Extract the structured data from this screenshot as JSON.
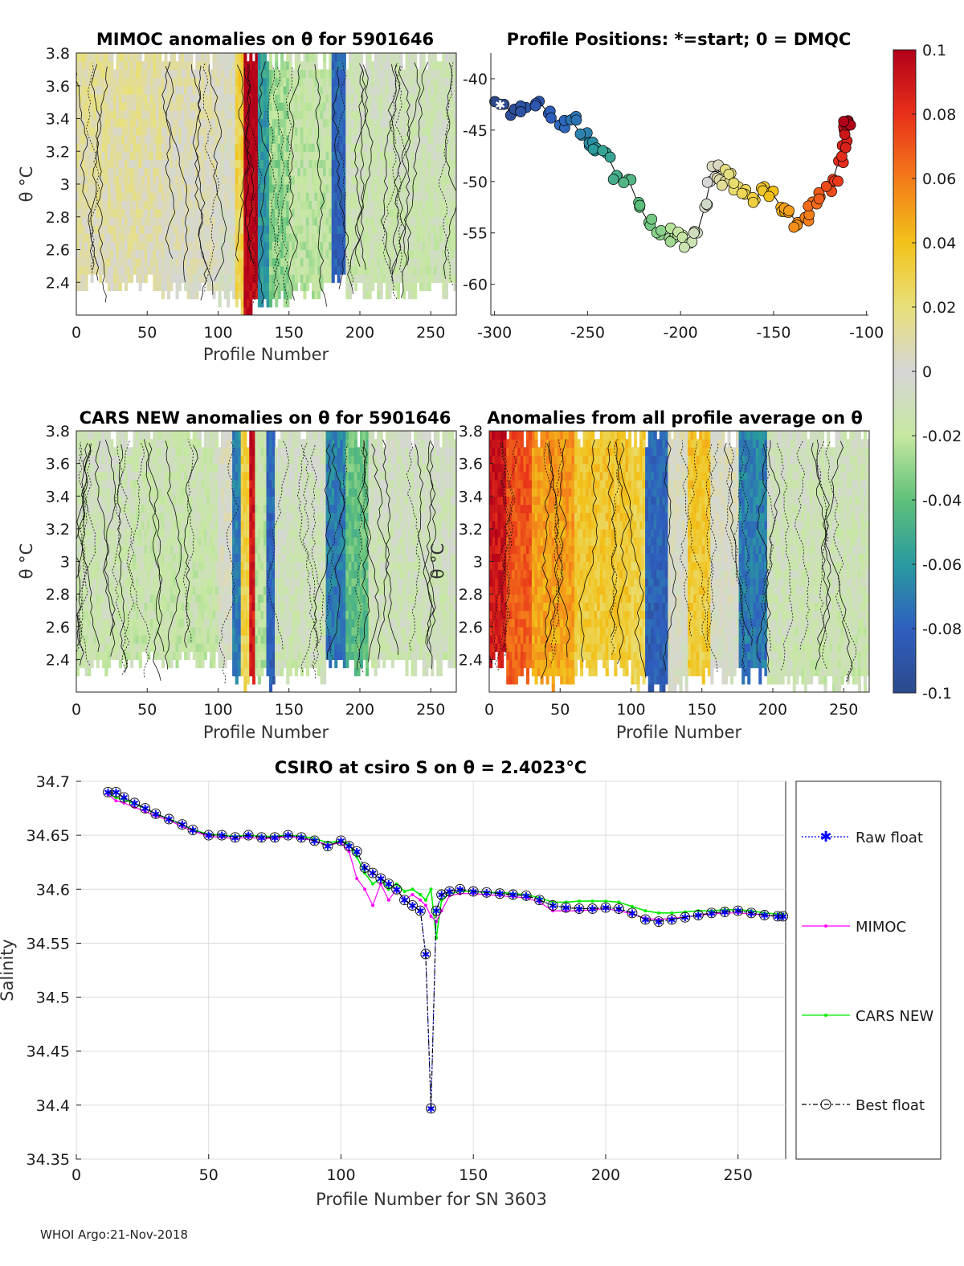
{
  "footer": "WHOI Argo:21-Nov-2018",
  "colors": {
    "raw": "#0000ff",
    "mimoc": "#ff00ff",
    "cars": "#00ee00",
    "best": "#000000"
  },
  "chart_data": [
    {
      "id": "mimoc",
      "type": "heatmap",
      "title": "MIMOC anomalies on θ  for 5901646",
      "xlabel": "Profile Number",
      "ylabel": "θ °C",
      "xlim": [
        0,
        268
      ],
      "ylim": [
        2.2,
        3.8
      ],
      "xticks": [
        "0",
        "50",
        "100",
        "150",
        "200",
        "250"
      ],
      "yticks": [
        "2.4",
        "2.6",
        "2.8",
        "3",
        "3.2",
        "3.4",
        "3.6",
        "3.8"
      ],
      "bands": [
        {
          "x0": 0,
          "x1": 60,
          "v": 0.01,
          "ylo": 2.35
        },
        {
          "x0": 60,
          "x1": 100,
          "v": 0.005,
          "ylo": 2.3
        },
        {
          "x0": 100,
          "x1": 112,
          "v": 0.0,
          "ylo": 2.25
        },
        {
          "x0": 112,
          "x1": 118,
          "v": 0.03,
          "ylo": 2.2
        },
        {
          "x0": 118,
          "x1": 128,
          "v": 0.1,
          "ylo": 2.2
        },
        {
          "x0": 128,
          "x1": 136,
          "v": -0.06,
          "ylo": 2.2
        },
        {
          "x0": 136,
          "x1": 150,
          "v": -0.03,
          "ylo": 2.25
        },
        {
          "x0": 150,
          "x1": 180,
          "v": -0.02,
          "ylo": 2.3
        },
        {
          "x0": 180,
          "x1": 190,
          "v": -0.08,
          "ylo": 2.35
        },
        {
          "x0": 190,
          "x1": 268,
          "v": -0.012,
          "ylo": 2.3
        }
      ]
    },
    {
      "id": "positions",
      "type": "scatter",
      "title": "Profile Positions: *=start; 0 = DMQC",
      "xlim": [
        -302,
        -99
      ],
      "ylim": [
        -63,
        -37.5
      ],
      "xticks": [
        "-300",
        "-250",
        "-200",
        "-150",
        "-100"
      ],
      "yticks": [
        "-40",
        "-45",
        "-50",
        "-55",
        "-60"
      ],
      "x": [
        -297,
        -290,
        -283,
        -276,
        -271,
        -265,
        -259,
        -253,
        -249,
        -246,
        -240,
        -234,
        -228,
        -222,
        -217,
        -211,
        -206,
        -203,
        -199,
        -195,
        -191,
        -187,
        -184,
        -181,
        -178,
        -176,
        -173,
        -169,
        -165,
        -160,
        -155,
        -151,
        -146,
        -142,
        -137,
        -133,
        -129,
        -125,
        -121,
        -118,
        -115,
        -113,
        -112,
        -111,
        -110
      ],
      "y": [
        -42.5,
        -43.2,
        -42.8,
        -42.2,
        -43.4,
        -44.5,
        -44.0,
        -45.5,
        -46.5,
        -47.0,
        -47.2,
        -49.5,
        -49.8,
        -52.5,
        -54.0,
        -55.2,
        -55.5,
        -55.0,
        -55.2,
        -56.0,
        -55.0,
        -52.5,
        -50.0,
        -48.5,
        -49.5,
        -50.0,
        -49.2,
        -50.5,
        -50.8,
        -51.8,
        -50.5,
        -51.0,
        -52.5,
        -53.0,
        -54.0,
        -53.5,
        -52.0,
        -51.5,
        -50.5,
        -49.8,
        -48.0,
        -46.5,
        -45.0,
        -44.5,
        -44.2
      ]
    },
    {
      "id": "cars",
      "type": "heatmap",
      "title": "CARS NEW anomalies on θ for 5901646",
      "xlabel": "Profile Number",
      "ylabel": "θ °C",
      "xlim": [
        0,
        268
      ],
      "ylim": [
        2.2,
        3.8
      ],
      "xticks": [
        "0",
        "50",
        "100",
        "150",
        "200",
        "250"
      ],
      "yticks": [
        "2.4",
        "2.6",
        "2.8",
        "3",
        "3.2",
        "3.4",
        "3.6",
        "3.8"
      ],
      "bands": [
        {
          "x0": 0,
          "x1": 40,
          "v": -0.012,
          "ylo": 2.3
        },
        {
          "x0": 40,
          "x1": 100,
          "v": -0.015,
          "ylo": 2.35
        },
        {
          "x0": 100,
          "x1": 110,
          "v": 0.0,
          "ylo": 2.3
        },
        {
          "x0": 110,
          "x1": 116,
          "v": -0.07,
          "ylo": 2.2
        },
        {
          "x0": 116,
          "x1": 122,
          "v": 0.03,
          "ylo": 2.2
        },
        {
          "x0": 122,
          "x1": 126,
          "v": 0.09,
          "ylo": 2.2
        },
        {
          "x0": 126,
          "x1": 134,
          "v": -0.02,
          "ylo": 2.25
        },
        {
          "x0": 134,
          "x1": 140,
          "v": -0.08,
          "ylo": 2.2
        },
        {
          "x0": 140,
          "x1": 175,
          "v": -0.01,
          "ylo": 2.25
        },
        {
          "x0": 175,
          "x1": 190,
          "v": -0.07,
          "ylo": 2.3
        },
        {
          "x0": 190,
          "x1": 205,
          "v": -0.04,
          "ylo": 2.3
        },
        {
          "x0": 205,
          "x1": 268,
          "v": -0.01,
          "ylo": 2.3
        }
      ]
    },
    {
      "id": "allavg",
      "type": "heatmap",
      "title": "Anomalies from all profile average on θ",
      "xlabel": "Profile Number",
      "ylabel": "θ °C",
      "xlim": [
        0,
        268
      ],
      "ylim": [
        2.2,
        3.8
      ],
      "xticks": [
        "0",
        "50",
        "100",
        "150",
        "200",
        "250"
      ],
      "yticks": [
        "2.4",
        "2.6",
        "2.8",
        "3",
        "3.2",
        "3.4",
        "3.6",
        "3.8"
      ],
      "bands": [
        {
          "x0": 0,
          "x1": 12,
          "v": 0.09,
          "ylo": 2.35
        },
        {
          "x0": 12,
          "x1": 30,
          "v": 0.07,
          "ylo": 2.25
        },
        {
          "x0": 30,
          "x1": 60,
          "v": 0.05,
          "ylo": 2.2
        },
        {
          "x0": 60,
          "x1": 100,
          "v": 0.035,
          "ylo": 2.3
        },
        {
          "x0": 100,
          "x1": 110,
          "v": 0.03,
          "ylo": 2.2
        },
        {
          "x0": 110,
          "x1": 125,
          "v": -0.08,
          "ylo": 2.2
        },
        {
          "x0": 125,
          "x1": 140,
          "v": 0.0,
          "ylo": 2.2
        },
        {
          "x0": 140,
          "x1": 155,
          "v": 0.035,
          "ylo": 2.25
        },
        {
          "x0": 155,
          "x1": 175,
          "v": 0.0,
          "ylo": 2.25
        },
        {
          "x0": 175,
          "x1": 195,
          "v": -0.07,
          "ylo": 2.25
        },
        {
          "x0": 195,
          "x1": 215,
          "v": -0.01,
          "ylo": 2.2
        },
        {
          "x0": 215,
          "x1": 268,
          "v": -0.012,
          "ylo": 2.2
        }
      ]
    },
    {
      "id": "colorbar",
      "type": "heatmap",
      "range": [
        -0.1,
        0.1
      ],
      "ticks": [
        "0.1",
        "0.08",
        "0.06",
        "0.04",
        "0.02",
        "0",
        "-0.02",
        "-0.04",
        "-0.06",
        "-0.08",
        "-0.1"
      ]
    },
    {
      "id": "salinity",
      "type": "line",
      "title": "CSIRO at csiro S on θ = 2.4023°C",
      "xlabel": "Profile Number for SN 3603",
      "ylabel": "Salinity",
      "xlim": [
        0,
        268
      ],
      "ylim": [
        34.35,
        34.7
      ],
      "xticks": [
        "0",
        "50",
        "100",
        "150",
        "200",
        "250"
      ],
      "yticks": [
        "34.7",
        "34.65",
        "34.6",
        "34.55",
        "34.5",
        "34.45",
        "34.4",
        "34.35"
      ],
      "legend": [
        "Raw float",
        "MIMOC",
        "CARS NEW",
        "Best float"
      ],
      "x": [
        12,
        15,
        18,
        22,
        26,
        30,
        35,
        40,
        44,
        50,
        55,
        60,
        65,
        70,
        75,
        80,
        85,
        90,
        95,
        100,
        103,
        106,
        109,
        112,
        115,
        118,
        121,
        124,
        127,
        130,
        132,
        134,
        136,
        138,
        141,
        145,
        150,
        155,
        160,
        165,
        170,
        175,
        180,
        185,
        190,
        195,
        200,
        205,
        210,
        215,
        220,
        225,
        230,
        235,
        240,
        245,
        250,
        255,
        260,
        265,
        267
      ],
      "series": [
        {
          "name": "Raw float",
          "values": [
            34.69,
            34.69,
            34.685,
            34.68,
            34.675,
            34.67,
            34.665,
            34.66,
            34.655,
            34.65,
            34.65,
            34.648,
            34.65,
            34.648,
            34.648,
            34.65,
            34.648,
            34.645,
            34.64,
            34.645,
            34.64,
            34.635,
            34.62,
            34.615,
            34.61,
            34.605,
            34.6,
            34.59,
            34.585,
            34.58,
            34.54,
            34.397,
            34.58,
            34.595,
            34.598,
            34.6,
            34.598,
            34.597,
            34.596,
            34.595,
            34.594,
            34.59,
            34.585,
            34.583,
            34.582,
            34.582,
            34.583,
            34.582,
            34.578,
            34.572,
            34.57,
            34.572,
            34.574,
            34.576,
            34.578,
            34.579,
            34.58,
            34.578,
            34.576,
            34.575,
            34.575
          ]
        },
        {
          "name": "MIMOC",
          "values": [
            34.688,
            34.682,
            34.68,
            34.676,
            34.672,
            34.668,
            34.664,
            34.658,
            34.654,
            34.649,
            34.648,
            34.647,
            34.648,
            34.647,
            34.647,
            34.649,
            34.647,
            34.645,
            34.641,
            34.643,
            34.635,
            34.61,
            34.6,
            34.585,
            34.605,
            34.59,
            34.6,
            34.59,
            34.595,
            34.59,
            34.585,
            34.575,
            34.57,
            34.58,
            34.594,
            34.596,
            34.596,
            34.595,
            34.594,
            34.593,
            34.592,
            34.588,
            34.58,
            34.58,
            34.58,
            34.581,
            34.582,
            34.58,
            34.577,
            34.573,
            34.572,
            34.573,
            34.574,
            34.576,
            34.577,
            34.578,
            34.578,
            34.577,
            34.576,
            34.575,
            34.575
          ]
        },
        {
          "name": "CARS NEW",
          "values": [
            34.689,
            34.685,
            34.683,
            34.679,
            34.675,
            34.67,
            34.665,
            34.66,
            34.655,
            34.651,
            34.65,
            34.649,
            34.65,
            34.649,
            34.649,
            34.65,
            34.649,
            34.647,
            34.643,
            34.645,
            34.642,
            34.63,
            34.615,
            34.605,
            34.61,
            34.6,
            34.605,
            34.598,
            34.6,
            34.595,
            34.59,
            34.6,
            34.555,
            34.59,
            34.596,
            34.598,
            34.598,
            34.597,
            34.597,
            34.596,
            34.595,
            34.592,
            34.588,
            34.588,
            34.589,
            34.589,
            34.589,
            34.588,
            34.584,
            34.58,
            34.578,
            34.578,
            34.579,
            34.58,
            34.58,
            34.581,
            34.581,
            34.58,
            34.578,
            34.577,
            34.577
          ]
        },
        {
          "name": "Best float",
          "values": [
            34.69,
            34.69,
            34.685,
            34.68,
            34.675,
            34.67,
            34.665,
            34.66,
            34.655,
            34.65,
            34.65,
            34.648,
            34.65,
            34.648,
            34.648,
            34.65,
            34.648,
            34.645,
            34.64,
            34.645,
            34.64,
            34.635,
            34.62,
            34.615,
            34.61,
            34.605,
            34.6,
            34.59,
            34.585,
            34.58,
            34.54,
            34.397,
            34.58,
            34.595,
            34.598,
            34.6,
            34.598,
            34.597,
            34.596,
            34.595,
            34.594,
            34.59,
            34.585,
            34.583,
            34.582,
            34.582,
            34.583,
            34.582,
            34.578,
            34.572,
            34.57,
            34.572,
            34.574,
            34.576,
            34.578,
            34.579,
            34.58,
            34.578,
            34.576,
            34.575,
            34.575
          ]
        }
      ]
    }
  ]
}
